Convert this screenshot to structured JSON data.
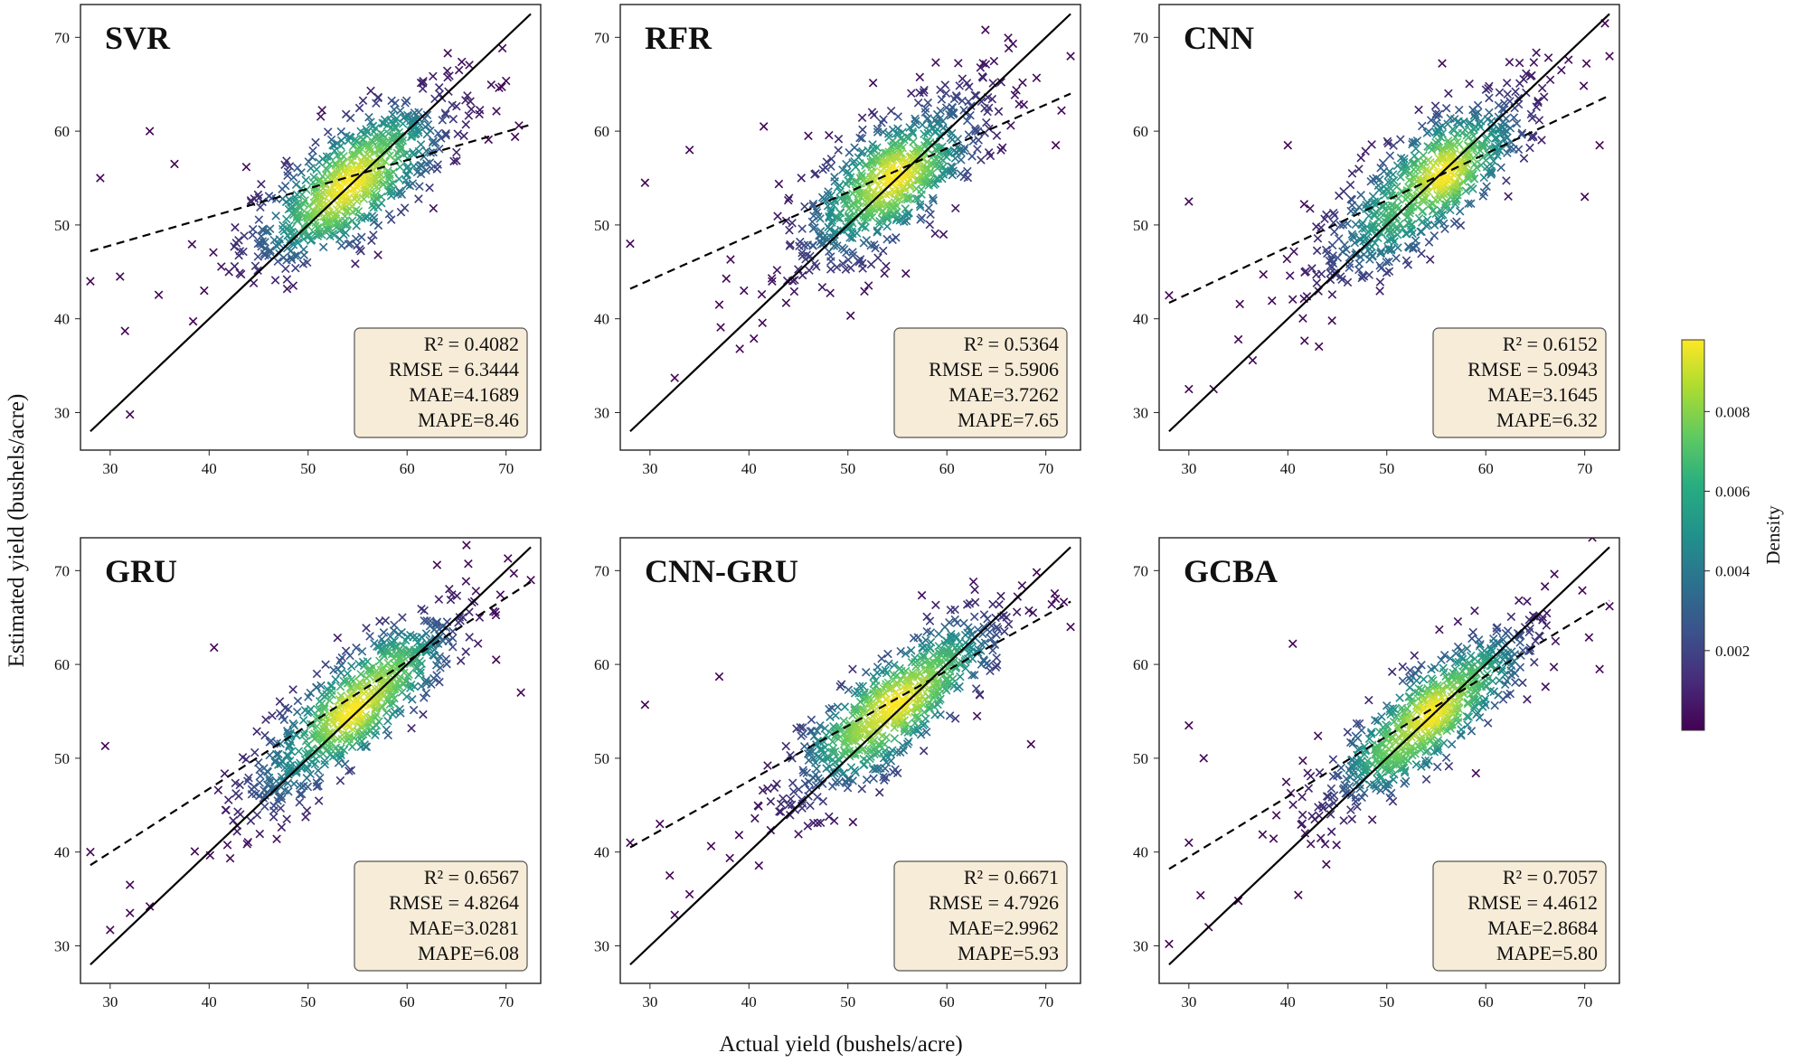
{
  "chart_data": {
    "type": "scatter",
    "xlabel": "Actual yield (bushels/acre)",
    "ylabel": "Estimated yield (bushels/acre)",
    "xlim": [
      27,
      73.5
    ],
    "ylim": [
      26,
      73.5
    ],
    "xticks": [
      30,
      40,
      50,
      60,
      70
    ],
    "yticks": [
      30,
      40,
      50,
      60,
      70
    ],
    "identity_line": {
      "x": [
        28,
        72.5
      ],
      "y": [
        28,
        72.5
      ]
    },
    "colorbar": {
      "label": "Density",
      "range": [
        0,
        0.0098
      ],
      "ticks": [
        0.002,
        0.004,
        0.006,
        0.008
      ],
      "tick_labels": [
        "0.002",
        "0.004",
        "0.006",
        "0.008"
      ],
      "colormap": [
        "#440154",
        "#3b528b",
        "#21918c",
        "#5ec962",
        "#fde725"
      ]
    },
    "marker": "x",
    "point_count_per_panel": 700,
    "panels": [
      {
        "name": "SVR",
        "stats": [
          "R² = 0.4082",
          "RMSE = 6.3444",
          "MAE=4.1689",
          "MAPE=8.46"
        ],
        "fit_line": {
          "x": [
            28,
            72.5
          ],
          "y": [
            47.2,
            60.7
          ]
        },
        "noise_sd": 3.2,
        "outliers": [
          [
            31.5,
            38.7
          ],
          [
            32,
            29.8
          ],
          [
            34,
            60
          ],
          [
            29,
            55
          ],
          [
            36.5,
            56.5
          ],
          [
            28,
            44
          ],
          [
            39.5,
            43
          ],
          [
            44.5,
            43.8
          ],
          [
            31,
            44.5
          ],
          [
            42,
            45
          ]
        ]
      },
      {
        "name": "RFR",
        "stats": [
          "R² = 0.5364",
          "RMSE = 5.5906",
          "MAE=3.7262",
          "MAPE=7.65",
          ""
        ],
        "fit_line": {
          "x": [
            28,
            72.5
          ],
          "y": [
            43.2,
            64
          ]
        },
        "noise_sd": 3.4,
        "outliers": [
          [
            32.5,
            33.7
          ],
          [
            28,
            48
          ],
          [
            29.5,
            54.5
          ],
          [
            34,
            58
          ],
          [
            37,
            41.5
          ],
          [
            39.5,
            43
          ],
          [
            41.5,
            60.5
          ],
          [
            46,
            59.5
          ],
          [
            72.5,
            68
          ],
          [
            71,
            58.5
          ]
        ]
      },
      {
        "name": "CNN",
        "stats": [
          "R² = 0.6152",
          "RMSE = 5.0943",
          "MAE=3.1645",
          "MAPE=6.32"
        ],
        "fit_line": {
          "x": [
            28,
            72.5
          ],
          "y": [
            41.7,
            63.8
          ]
        },
        "noise_sd": 3.3,
        "outliers": [
          [
            30,
            32.5
          ],
          [
            32.5,
            32.5
          ],
          [
            35,
            37.8
          ],
          [
            28,
            42.5
          ],
          [
            30,
            52.5
          ],
          [
            40,
            58.5
          ],
          [
            46.5,
            55.5
          ],
          [
            72.5,
            68
          ],
          [
            71.5,
            58.5
          ],
          [
            70,
            53
          ]
        ]
      },
      {
        "name": "GRU",
        "stats": [
          "R² = 0.6567",
          "RMSE = 4.8264",
          "MAE=3.0281",
          "MAPE=6.08"
        ],
        "fit_line": {
          "x": [
            28,
            72.5
          ],
          "y": [
            38.6,
            68.8
          ]
        },
        "noise_sd": 2.9,
        "outliers": [
          [
            30,
            31.7
          ],
          [
            32,
            33.5
          ],
          [
            32,
            36.5
          ],
          [
            34,
            34.2
          ],
          [
            28,
            40
          ],
          [
            29.5,
            51.3
          ],
          [
            40.5,
            61.8
          ],
          [
            71.5,
            57
          ],
          [
            72.5,
            69
          ],
          [
            69,
            60.5
          ]
        ]
      },
      {
        "name": "CNN-GRU",
        "stats": [
          "R² = 0.6671",
          "RMSE = 4.7926",
          "MAE=2.9962",
          "MAPE=5.93"
        ],
        "fit_line": {
          "x": [
            28,
            72.5
          ],
          "y": [
            40.5,
            66.7
          ]
        },
        "noise_sd": 2.9,
        "outliers": [
          [
            32.5,
            33.3
          ],
          [
            32,
            37.5
          ],
          [
            34,
            35.5
          ],
          [
            28,
            41
          ],
          [
            29.5,
            55.7
          ],
          [
            37,
            58.7
          ],
          [
            68.5,
            51.5
          ],
          [
            72.5,
            64
          ],
          [
            71,
            67
          ],
          [
            31,
            43
          ]
        ]
      },
      {
        "name": "GCBA",
        "stats": [
          "R² = 0.7057",
          "RMSE = 4.4612",
          "MAE=2.8684",
          "MAPE=5.80"
        ],
        "fit_line": {
          "x": [
            28,
            72.5
          ],
          "y": [
            38.2,
            66.8
          ]
        },
        "noise_sd": 2.7,
        "outliers": [
          [
            28,
            30.2
          ],
          [
            32,
            32
          ],
          [
            35,
            34.8
          ],
          [
            30,
            41
          ],
          [
            30,
            53.5
          ],
          [
            40.5,
            62.2
          ],
          [
            59,
            48.4
          ],
          [
            71.5,
            59.5
          ],
          [
            72.5,
            66.2
          ],
          [
            31.5,
            50
          ]
        ]
      }
    ]
  }
}
